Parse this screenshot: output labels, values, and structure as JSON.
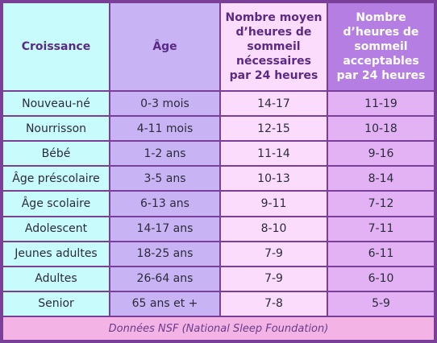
{
  "table": {
    "headers": [
      "Croissance",
      "Âge",
      "Nombre moyen\nd’heures de\nsommeil\nnécessaires\npar 24 heures",
      "Nombre\nd’heures de\nsommeil\nacceptables\npar 24 heures"
    ],
    "rows": [
      [
        "Nouveau-né",
        "0-3 mois",
        "14-17",
        "11-19"
      ],
      [
        "Nourrisson",
        "4-11 mois",
        "12-15",
        "10-18"
      ],
      [
        "Bébé",
        "1-2 ans",
        "11-14",
        "9-16"
      ],
      [
        "Âge préscolaire",
        "3-5 ans",
        "10-13",
        "8-14"
      ],
      [
        "Âge scolaire",
        "6-13 ans",
        "9-11",
        "7-12"
      ],
      [
        "Adolescent",
        "14-17 ans",
        "8-10",
        "7-11"
      ],
      [
        "Jeunes adultes",
        "18-25 ans",
        "7-9",
        "6-11"
      ],
      [
        "Adultes",
        "26-64 ans",
        "7-9",
        "6-10"
      ],
      [
        "Senior",
        "65 ans et +",
        "7-8",
        "5-9"
      ]
    ],
    "footer": "Données NSF (National Sleep Foundation)"
  },
  "colors": {
    "border": "#7a3f98",
    "col_growth": "#c8fbfb",
    "col_age": "#c8b4f4",
    "col_average": "#fcdcfc",
    "col_acceptable_header": "#b57ee2",
    "col_acceptable": "#e2b2f5",
    "footer_bg": "#f3b4e5"
  }
}
